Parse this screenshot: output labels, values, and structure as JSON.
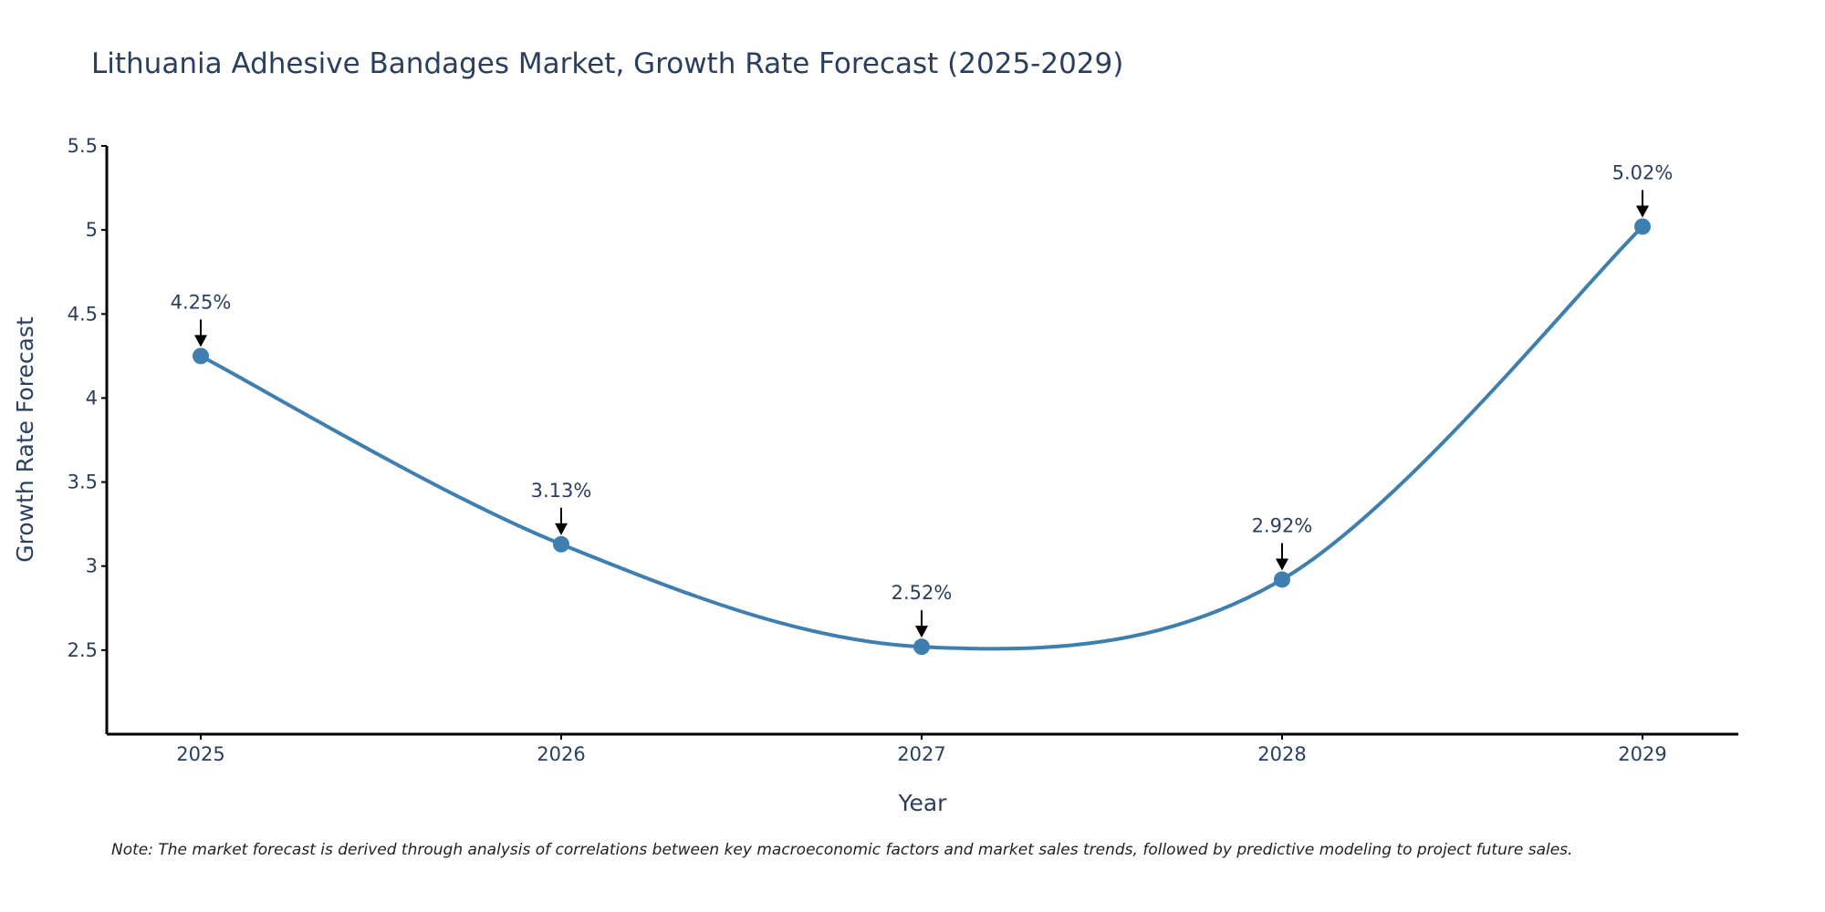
{
  "chart_data": {
    "type": "line",
    "title": "Lithuania Adhesive Bandages Market, Growth Rate Forecast (2025-2029)",
    "xlabel": "Year",
    "ylabel": "Growth Rate Forecast",
    "categories": [
      "2025",
      "2026",
      "2027",
      "2028",
      "2029"
    ],
    "series": [
      {
        "name": "Growth Rate Forecast",
        "values": [
          4.25,
          3.13,
          2.52,
          2.92,
          5.02
        ],
        "labels": [
          "4.25%",
          "3.13%",
          "2.52%",
          "2.92%",
          "5.02%"
        ],
        "color": "#3f7fb0"
      }
    ],
    "ylim": [
      2,
      5.5
    ],
    "yticks": [
      2.5,
      3,
      3.5,
      4,
      4.5,
      5,
      5.5
    ],
    "ytick_labels": [
      "2.5",
      "3",
      "3.5",
      "4",
      "4.5",
      "5",
      "5.5"
    ],
    "grid": false,
    "line_shape": "spline",
    "note": "Note: The market forecast is derived through analysis of correlations between key macroeconomic factors and market sales trends, followed by predictive modeling to project future sales."
  }
}
